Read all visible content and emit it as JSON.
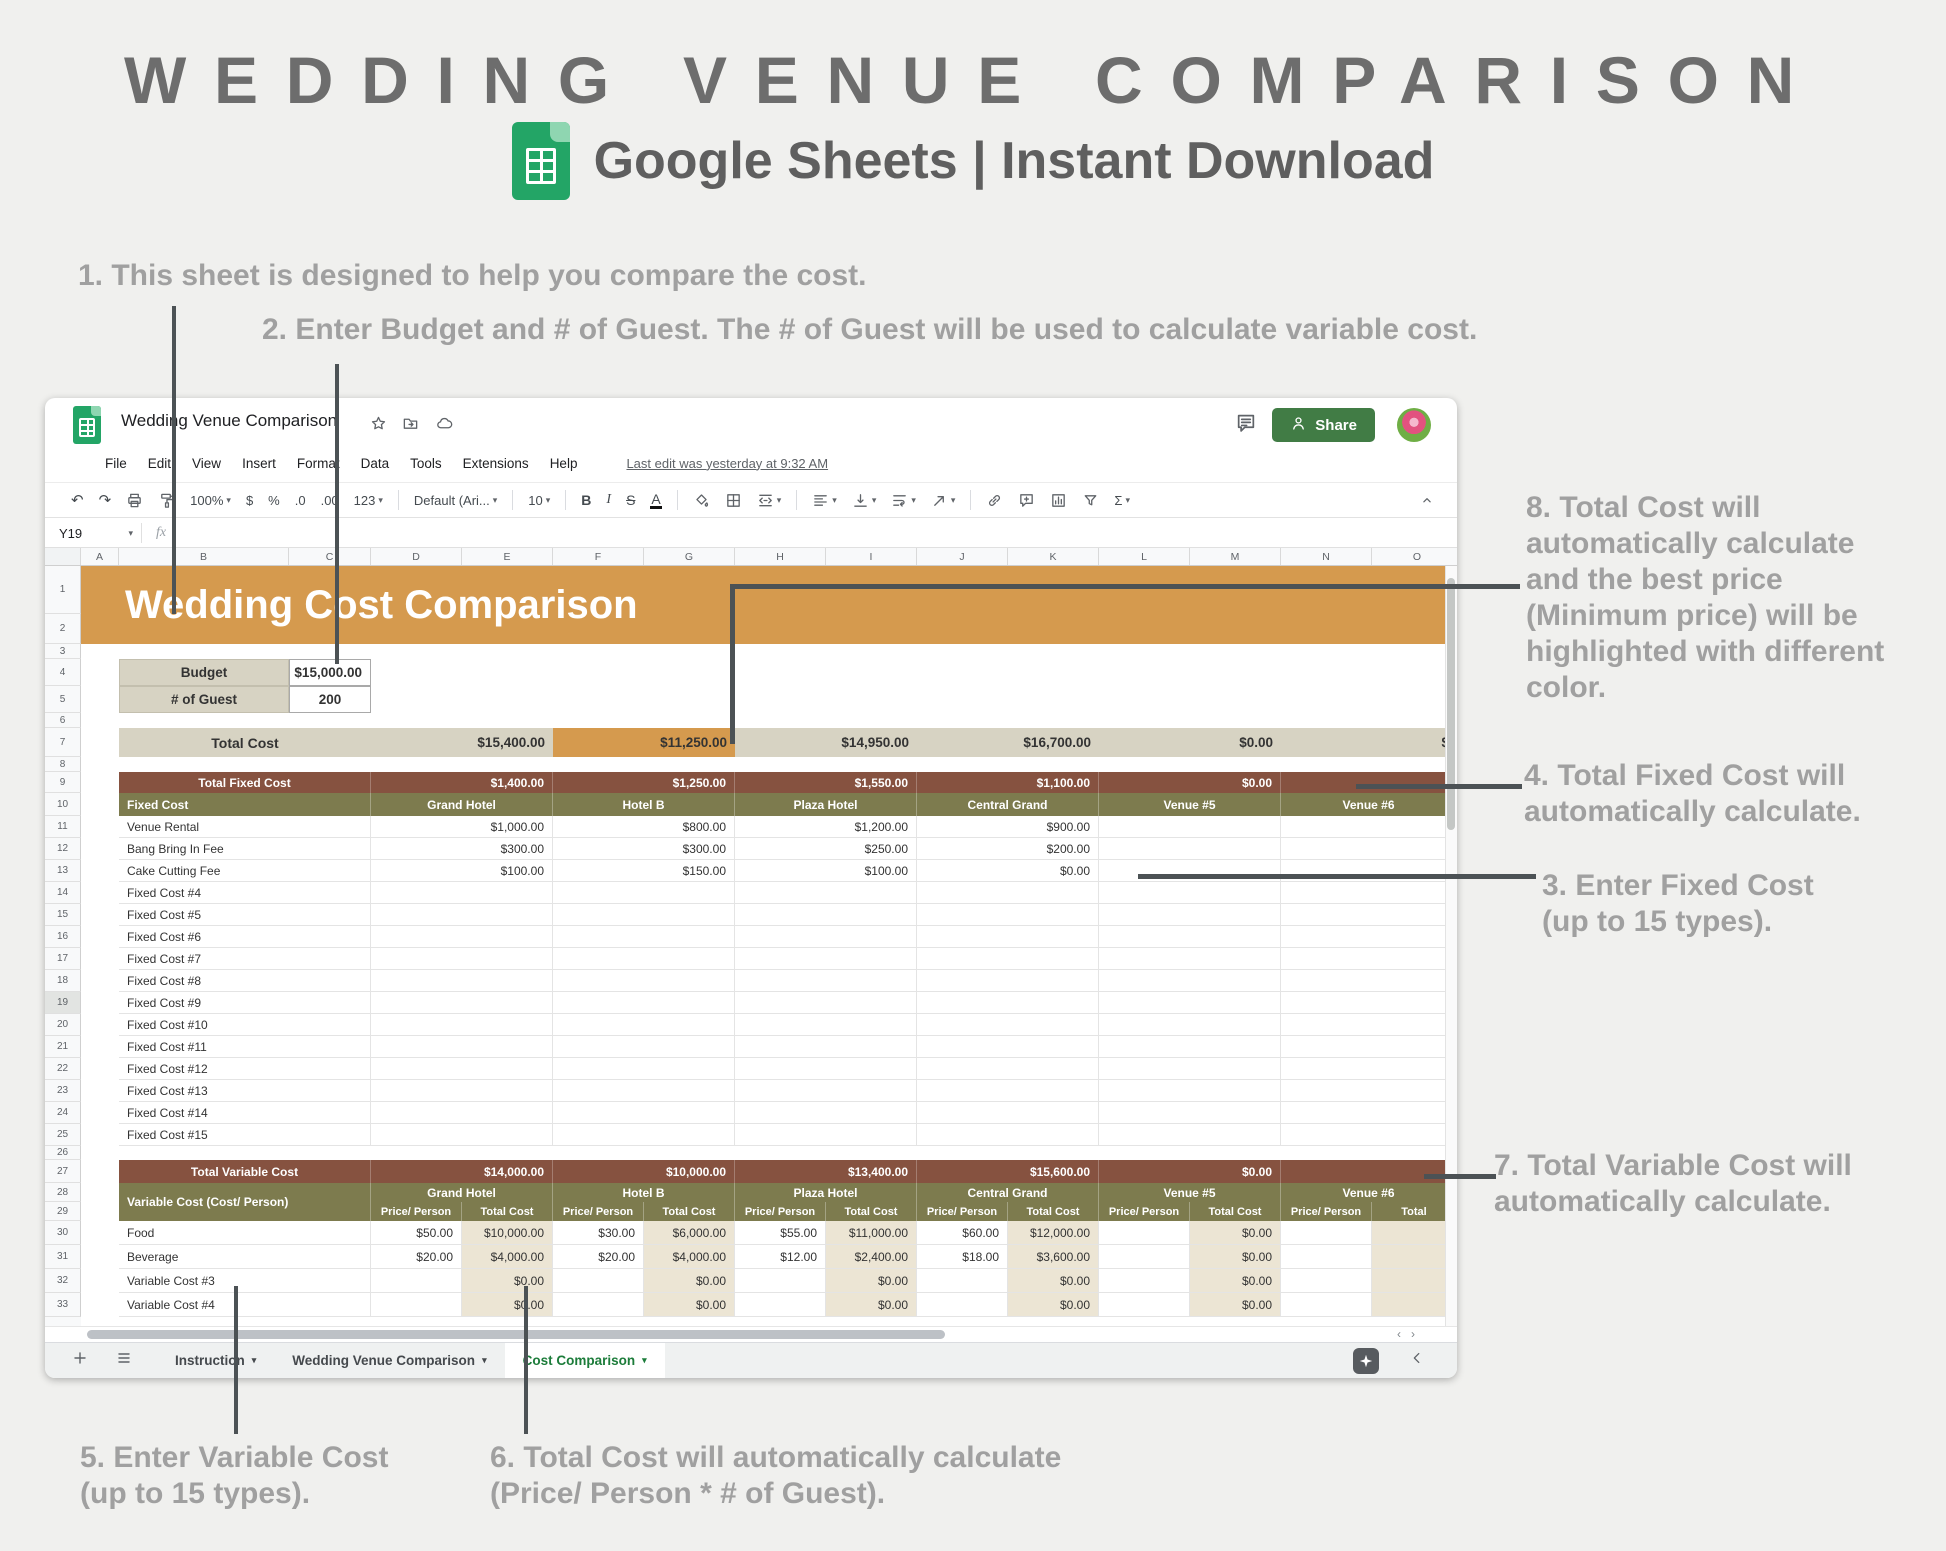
{
  "header": {
    "title": "WEDDING VENUE COMPARISON",
    "subtitle": "Google Sheets | Instant Download"
  },
  "annotations": [
    {
      "id": "a1",
      "text": "1. This sheet is designed to help you compare the cost."
    },
    {
      "id": "a2",
      "text": "2. Enter Budget and # of Guest. The # of Guest will be used to calculate variable cost."
    },
    {
      "id": "a3",
      "text": "3. Enter Fixed Cost\n(up to 15 types)."
    },
    {
      "id": "a4",
      "text": "4. Total Fixed Cost will\nautomatically calculate."
    },
    {
      "id": "a5",
      "text": "5. Enter Variable Cost\n(up to 15 types)."
    },
    {
      "id": "a6",
      "text": "6. Total Cost will automatically calculate\n(Price/ Person * # of Guest)."
    },
    {
      "id": "a7",
      "text": "7. Total Variable Cost will\nautomatically calculate."
    },
    {
      "id": "a8",
      "text": "8. Total Cost will\nautomatically calculate\nand the best price\n(Minimum price) will be\nhighlighted with different\ncolor."
    }
  ],
  "app": {
    "doc_title": "Wedding Venue Comparison",
    "menu": [
      "File",
      "Edit",
      "View",
      "Insert",
      "Format",
      "Data",
      "Tools",
      "Extensions",
      "Help"
    ],
    "last_edit": "Last edit was yesterday at 9:32 AM",
    "share_label": "Share",
    "name_box": "Y19",
    "formula_fx": "fx",
    "toolbar_items": [
      {
        "name": "undo-icon",
        "glyph": "↶"
      },
      {
        "name": "redo-icon",
        "glyph": "↷"
      },
      {
        "name": "print-icon"
      },
      {
        "name": "paint-format-icon"
      },
      {
        "name": "zoom-select",
        "text": "100%",
        "dd": true
      },
      {
        "name": "format-currency-button",
        "text": "$"
      },
      {
        "name": "format-percent-button",
        "text": "%"
      },
      {
        "name": "decrease-decimals-button",
        "text": ".0"
      },
      {
        "name": "increase-decimals-button",
        "text": ".00"
      },
      {
        "name": "number-format-select",
        "text": "123",
        "dd": true
      },
      {
        "name": "sep"
      },
      {
        "name": "font-select",
        "text": "Default (Ari...",
        "dd": true
      },
      {
        "name": "sep"
      },
      {
        "name": "font-size-select",
        "text": "10",
        "dd": true
      },
      {
        "name": "sep"
      },
      {
        "name": "bold-button",
        "text": "B",
        "style": "b"
      },
      {
        "name": "italic-button",
        "text": "I",
        "style": "i"
      },
      {
        "name": "strikethrough-button",
        "text": "S",
        "style": "s"
      },
      {
        "name": "text-color-button",
        "text": "A",
        "style": "u"
      },
      {
        "name": "sep"
      },
      {
        "name": "fill-color-icon"
      },
      {
        "name": "borders-icon"
      },
      {
        "name": "merge-cells-icon",
        "dd": true
      },
      {
        "name": "sep"
      },
      {
        "name": "horizontal-align-icon",
        "dd": true
      },
      {
        "name": "vertical-align-icon",
        "dd": true
      },
      {
        "name": "text-wrap-icon",
        "dd": true
      },
      {
        "name": "text-rotate-icon",
        "dd": true
      },
      {
        "name": "sep"
      },
      {
        "name": "insert-link-icon"
      },
      {
        "name": "insert-comment-icon"
      },
      {
        "name": "insert-chart-icon"
      },
      {
        "name": "filter-icon"
      },
      {
        "name": "functions-button",
        "text": "Σ",
        "dd": true
      }
    ],
    "columns": [
      "A",
      "B",
      "C",
      "D",
      "E",
      "F",
      "G",
      "H",
      "I",
      "J",
      "K",
      "L",
      "M",
      "N",
      "O"
    ],
    "row_count": 33,
    "selected_row": 19,
    "tabs": [
      {
        "label": "Instruction",
        "active": false
      },
      {
        "label": "Wedding Venue Comparison",
        "active": false
      },
      {
        "label": "Cost Comparison",
        "active": true
      }
    ]
  },
  "sheet": {
    "banner_title": "Wedding Cost Comparison",
    "budget": {
      "label": "Budget",
      "value": "$15,000.00"
    },
    "guests": {
      "label": "# of Guest",
      "value": "200"
    },
    "total_cost": {
      "label": "Total Cost",
      "values": [
        "$15,400.00",
        "$11,250.00",
        "$14,950.00",
        "$16,700.00",
        "$0.00",
        "$"
      ],
      "best_index": 1
    },
    "venues": [
      "Grand Hotel",
      "Hotel B",
      "Plaza Hotel",
      "Central Grand",
      "Venue #5",
      "Venue #6"
    ],
    "fixed": {
      "total_label": "Total Fixed Cost",
      "totals": [
        "$1,400.00",
        "$1,250.00",
        "$1,550.00",
        "$1,100.00",
        "$0.00",
        ""
      ],
      "col_header": "Fixed Cost",
      "rows": [
        {
          "label": "Venue Rental",
          "values": [
            "$1,000.00",
            "$800.00",
            "$1,200.00",
            "$900.00",
            "",
            ""
          ]
        },
        {
          "label": "Bang Bring In Fee",
          "values": [
            "$300.00",
            "$300.00",
            "$250.00",
            "$200.00",
            "",
            ""
          ]
        },
        {
          "label": "Cake Cutting Fee",
          "values": [
            "$100.00",
            "$150.00",
            "$100.00",
            "$0.00",
            "",
            ""
          ]
        },
        {
          "label": "Fixed Cost #4",
          "values": [
            "",
            "",
            "",
            "",
            "",
            ""
          ]
        },
        {
          "label": "Fixed Cost #5",
          "values": [
            "",
            "",
            "",
            "",
            "",
            ""
          ]
        },
        {
          "label": "Fixed Cost #6",
          "values": [
            "",
            "",
            "",
            "",
            "",
            ""
          ]
        },
        {
          "label": "Fixed Cost #7",
          "values": [
            "",
            "",
            "",
            "",
            "",
            ""
          ]
        },
        {
          "label": "Fixed Cost #8",
          "values": [
            "",
            "",
            "",
            "",
            "",
            ""
          ]
        },
        {
          "label": "Fixed Cost #9",
          "values": [
            "",
            "",
            "",
            "",
            "",
            ""
          ]
        },
        {
          "label": "Fixed Cost #10",
          "values": [
            "",
            "",
            "",
            "",
            "",
            ""
          ]
        },
        {
          "label": "Fixed Cost #11",
          "values": [
            "",
            "",
            "",
            "",
            "",
            ""
          ]
        },
        {
          "label": "Fixed Cost #12",
          "values": [
            "",
            "",
            "",
            "",
            "",
            ""
          ]
        },
        {
          "label": "Fixed Cost #13",
          "values": [
            "",
            "",
            "",
            "",
            "",
            ""
          ]
        },
        {
          "label": "Fixed Cost #14",
          "values": [
            "",
            "",
            "",
            "",
            "",
            ""
          ]
        },
        {
          "label": "Fixed Cost #15",
          "values": [
            "",
            "",
            "",
            "",
            "",
            ""
          ]
        }
      ]
    },
    "variable": {
      "total_label": "Total Variable Cost",
      "totals": [
        "$14,000.00",
        "$10,000.00",
        "$13,400.00",
        "$15,600.00",
        "$0.00",
        ""
      ],
      "col_header": "Variable Cost (Cost/ Person)",
      "sub_price": "Price/ Person",
      "sub_total": "Total Cost",
      "sub_total_cut": "Total",
      "rows": [
        {
          "label": "Food",
          "pairs": [
            [
              "$50.00",
              "$10,000.00"
            ],
            [
              "$30.00",
              "$6,000.00"
            ],
            [
              "$55.00",
              "$11,000.00"
            ],
            [
              "$60.00",
              "$12,000.00"
            ],
            [
              "",
              "$0.00"
            ],
            [
              "",
              ""
            ]
          ]
        },
        {
          "label": "Beverage",
          "pairs": [
            [
              "$20.00",
              "$4,000.00"
            ],
            [
              "$20.00",
              "$4,000.00"
            ],
            [
              "$12.00",
              "$2,400.00"
            ],
            [
              "$18.00",
              "$3,600.00"
            ],
            [
              "",
              "$0.00"
            ],
            [
              "",
              ""
            ]
          ]
        },
        {
          "label": "Variable Cost #3",
          "pairs": [
            [
              "",
              "$0.00"
            ],
            [
              "",
              "$0.00"
            ],
            [
              "",
              "$0.00"
            ],
            [
              "",
              "$0.00"
            ],
            [
              "",
              "$0.00"
            ],
            [
              "",
              ""
            ]
          ]
        },
        {
          "label": "Variable Cost #4",
          "pairs": [
            [
              "",
              "$0.00"
            ],
            [
              "",
              "$0.00"
            ],
            [
              "",
              "$0.00"
            ],
            [
              "",
              "$0.00"
            ],
            [
              "",
              "$0.00"
            ],
            [
              "",
              ""
            ]
          ]
        }
      ]
    },
    "colors": {
      "banner_orange": "#d59a4e",
      "best_price_highlight": "#d59a4e",
      "total_row_beige": "#d7d3c3",
      "section_brown": "#865240",
      "section_olive": "#7d7b4e",
      "total_cost_column_beige": "#ece5d4",
      "share_button_green": "#417c45",
      "active_tab_green": "#1c7c3a"
    }
  }
}
